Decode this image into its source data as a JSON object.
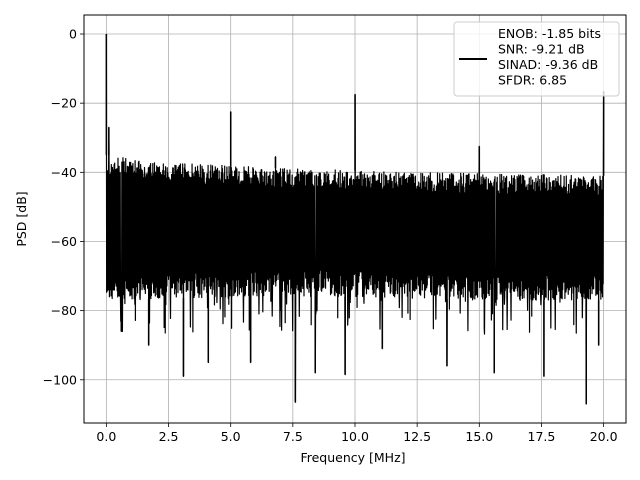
{
  "chart_data": {
    "type": "line",
    "xlabel": "Frequency [MHz]",
    "ylabel": "PSD [dB]",
    "xlim": [
      -0.9,
      20.9
    ],
    "ylim": [
      -112.5,
      5.5
    ],
    "xticks": [
      0.0,
      2.5,
      5.0,
      7.5,
      10.0,
      12.5,
      15.0,
      17.5,
      20.0
    ],
    "xtick_labels": [
      "0.0",
      "2.5",
      "5.0",
      "7.5",
      "10.0",
      "12.5",
      "15.0",
      "17.5",
      "20.0"
    ],
    "yticks": [
      0,
      -20,
      -40,
      -60,
      -80,
      -100
    ],
    "ytick_labels": [
      "0",
      "−20",
      "−40",
      "−60",
      "−80",
      "−100"
    ],
    "grid": true,
    "legend_position": "top-right",
    "series": [
      {
        "name": "ENOB: -1.85 bits\nSNR: -9.21 dB\nSINAD: -9.36 dB\nSFDR: 6.85",
        "color": "#000000",
        "noise_floor_upper": [
          [
            0,
            -35
          ],
          [
            2,
            -37
          ],
          [
            6,
            -38.5
          ],
          [
            12,
            -40
          ],
          [
            20,
            -41
          ]
        ],
        "noise_floor_lower": [
          [
            0,
            -77
          ],
          [
            5,
            -76
          ],
          [
            10,
            -76
          ],
          [
            15,
            -77
          ],
          [
            20,
            -77
          ]
        ],
        "spikes": [
          {
            "x": 0.0,
            "y": 0
          },
          {
            "x": 0.1,
            "y": -27
          },
          {
            "x": 5.0,
            "y": -22.5
          },
          {
            "x": 6.8,
            "y": -35.5
          },
          {
            "x": 10.0,
            "y": -17.5
          },
          {
            "x": 15.0,
            "y": -32.5
          },
          {
            "x": 20.0,
            "y": -16.5
          }
        ],
        "dips": [
          {
            "x": 0.6,
            "y": -86
          },
          {
            "x": 1.7,
            "y": -90
          },
          {
            "x": 3.1,
            "y": -99
          },
          {
            "x": 4.1,
            "y": -95
          },
          {
            "x": 5.8,
            "y": -95
          },
          {
            "x": 7.6,
            "y": -106.5
          },
          {
            "x": 8.4,
            "y": -98
          },
          {
            "x": 9.6,
            "y": -98.5
          },
          {
            "x": 11.1,
            "y": -91
          },
          {
            "x": 13.7,
            "y": -96
          },
          {
            "x": 15.6,
            "y": -98
          },
          {
            "x": 17.6,
            "y": -99
          },
          {
            "x": 19.3,
            "y": -107
          },
          {
            "x": 19.8,
            "y": -90
          }
        ]
      }
    ]
  }
}
